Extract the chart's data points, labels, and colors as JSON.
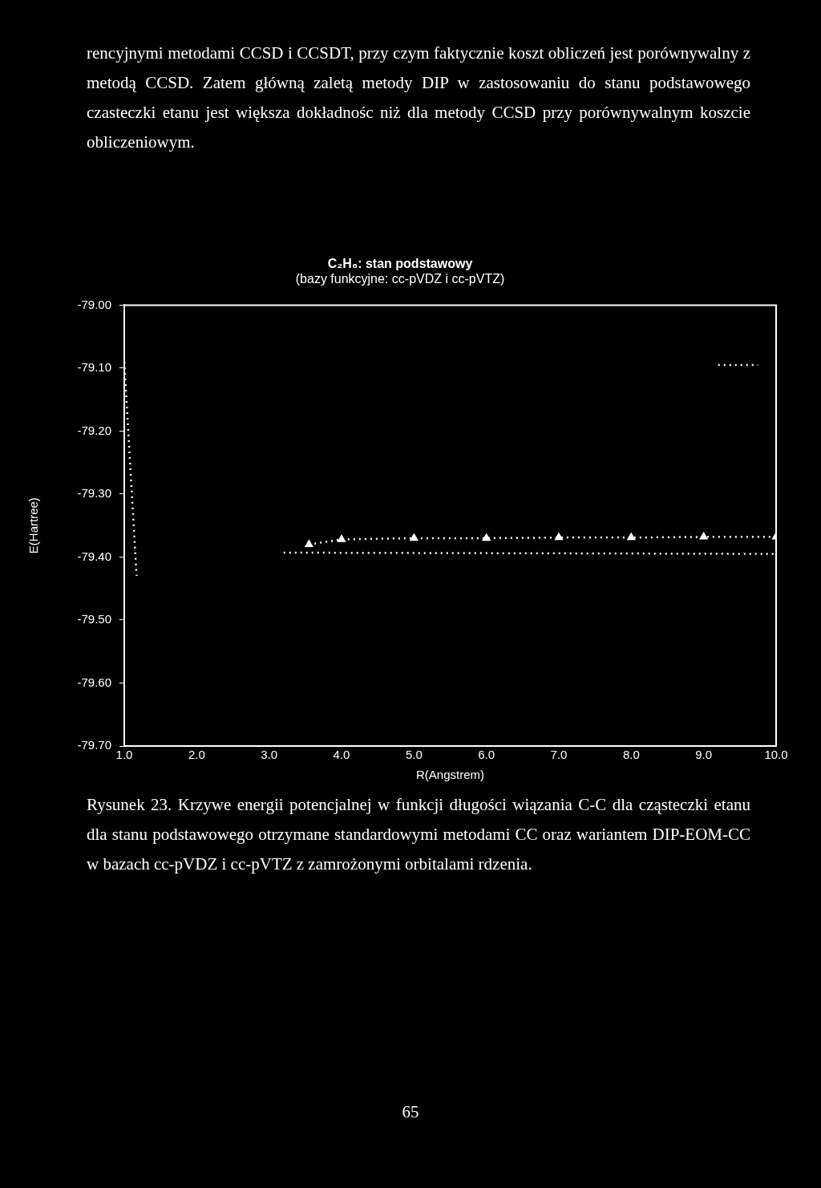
{
  "chart_data": {
    "type": "line",
    "title": "C₂H₆: stan podstawowy",
    "subtitle": "(bazy funkcyjne: cc-pVDZ i cc-pVTZ)",
    "xlabel": "R(Angstrem)",
    "ylabel": "E(Hartree)",
    "annotations": [
      "rencyjnymi metodami CCSD i CCSDT, przy czym faktycznie koszt obliczeń jest porównywalny z metodą CCSD. Zatem główną zaletą metody DIP w zastosowaniu do stanu podstawowego czasteczki etanu jest większa dokładnośc niż dla metody CCSD przy porównywalnym koszcie obliczeniowym.",
      "Rysunek 23. Krzywe energii potencjalnej w funkcji długości wiązania C-C dla cząsteczki etanu dla stanu podstawowego otrzymane standardowymi metodami CC oraz wariantem DIP-EOM-CC w bazach cc-pVDZ i cc-pVTZ z zamrożonymi orbitalami rdzenia.",
      "65"
    ],
    "series": [
      {
        "color": "#ffffff",
        "x": [
          1.0,
          1.17
        ],
        "values": [
          -79.09,
          -79.43
        ],
        "marker": "none"
      },
      {
        "color": "#ffffff",
        "x": [
          3.55,
          4.0,
          5.0,
          6.0,
          7.0,
          8.0,
          9.0,
          10.0
        ],
        "values": [
          -79.38,
          -79.372,
          -79.37,
          -79.37,
          -79.369,
          -79.369,
          -79.368,
          -79.368
        ],
        "marker": "triangle"
      },
      {
        "color": "#ffffff",
        "x": [
          3.2,
          10.0
        ],
        "values": [
          -79.393,
          -79.395
        ],
        "marker": "none"
      },
      {
        "color": "#ffffff",
        "x": [
          9.2,
          9.75
        ],
        "values": [
          -79.095,
          -79.095
        ],
        "marker": "none"
      }
    ],
    "xlim": [
      1.0,
      10.0
    ],
    "xticks": [
      {
        "value": 1,
        "label": "1.0"
      },
      {
        "value": 2,
        "label": "2.0"
      },
      {
        "value": 3,
        "label": "3.0"
      },
      {
        "value": 4,
        "label": "4.0"
      },
      {
        "value": 5,
        "label": "5.0"
      },
      {
        "value": 6,
        "label": "6.0"
      },
      {
        "value": 7,
        "label": "7.0"
      },
      {
        "value": 8,
        "label": "8.0"
      },
      {
        "value": 9,
        "label": "9.0"
      },
      {
        "value": 10,
        "label": "10.0"
      }
    ],
    "ylim": [
      -79.7,
      -79.0
    ],
    "yticks": [
      {
        "value": -79.7,
        "label": "-79.70"
      },
      {
        "value": -79.6,
        "label": "-79.60"
      },
      {
        "value": -79.5,
        "label": "-79.50"
      },
      {
        "value": -79.4,
        "label": "-79.40"
      },
      {
        "value": -79.3,
        "label": "-79.30"
      },
      {
        "value": -79.2,
        "label": "-79.20"
      },
      {
        "value": -79.1,
        "label": "-79.10"
      },
      {
        "value": -79.0,
        "label": "-79.00"
      }
    ],
    "grid": false,
    "legend": false,
    "line_style": "dotted"
  }
}
